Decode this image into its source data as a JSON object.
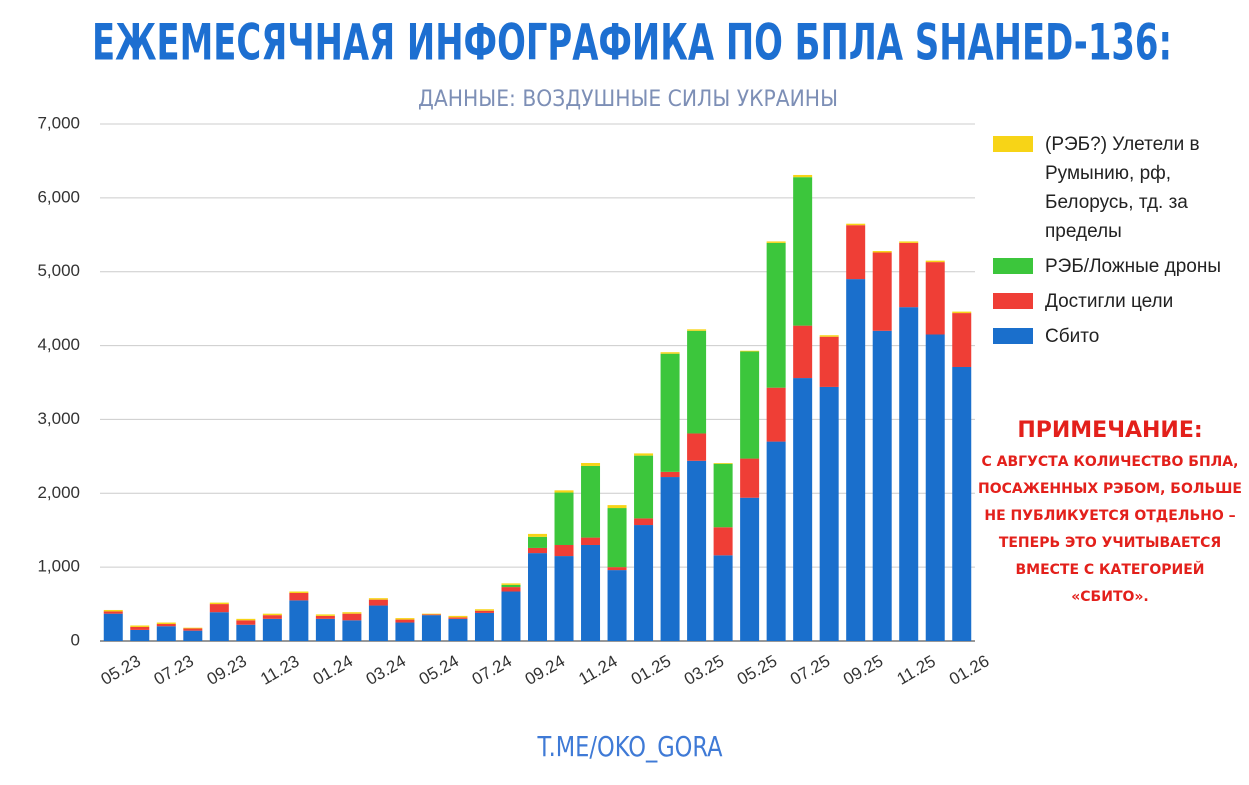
{
  "chart_data": {
    "type": "bar",
    "stacked": true,
    "title": "ЕЖЕМЕСЯЧНАЯ ИНФОГРАФИКА ПО БПЛА SHAHED-136:",
    "subtitle": "ДАННЫЕ: ВОЗДУШНЫЕ СИЛЫ УКРАИНЫ",
    "footer": "T.ME/OKO_GORA",
    "note": {
      "title": "ПРИМЕЧАНИЕ:",
      "text": "С АВГУСТА КОЛИЧЕСТВО БПЛА, ПОСАЖЕННЫХ РЭБОМ, БОЛЬШЕ НЕ ПУБЛИКУЕТСЯ ОТДЕЛЬНО – ТЕПЕРЬ ЭТО УЧИТЫВАЕТСЯ ВМЕСТЕ С КАТЕГОРИЕЙ «СБИТО»."
    },
    "categories": [
      "05.23",
      null,
      "07.23",
      null,
      "09.23",
      null,
      "11.23",
      null,
      "01.24",
      null,
      "03.24",
      null,
      "05.24",
      null,
      "07.24",
      null,
      "09.24",
      null,
      "11.24",
      null,
      "01.25",
      null,
      "03.25",
      null,
      "05.25",
      null,
      "07.25",
      null,
      "09.25",
      null,
      "11.25",
      null,
      "01.26"
    ],
    "series": [
      {
        "name": "Сбито",
        "color": "#1a6fcc",
        "values": [
          370,
          150,
          200,
          140,
          390,
          220,
          300,
          550,
          300,
          280,
          480,
          250,
          350,
          300,
          380,
          670,
          1190,
          1150,
          1300,
          960,
          1570,
          2220,
          2440,
          1160,
          1940,
          2700,
          3560,
          3440,
          4900,
          4200,
          4520,
          4150,
          3710
        ]
      },
      {
        "name": "Достигли цели",
        "color": "#ef3e36",
        "values": [
          30,
          40,
          30,
          30,
          110,
          60,
          50,
          100,
          40,
          90,
          80,
          40,
          10,
          20,
          30,
          60,
          70,
          150,
          100,
          40,
          90,
          70,
          370,
          380,
          530,
          730,
          710,
          680,
          730,
          1060,
          870,
          980,
          730
        ]
      },
      {
        "name": "РЭБ/Ложные дроны",
        "color": "#3cc63c",
        "values": [
          0,
          0,
          0,
          0,
          0,
          0,
          0,
          0,
          0,
          0,
          0,
          0,
          0,
          0,
          0,
          30,
          150,
          710,
          970,
          800,
          850,
          1600,
          1390,
          860,
          1450,
          1960,
          2010,
          0,
          0,
          0,
          0,
          0,
          0
        ]
      },
      {
        "name": "(РЭБ?) Улетели в Румынию, рф, Белорусь, тд. за пределы",
        "color": "#f7d417",
        "values": [
          20,
          20,
          20,
          10,
          20,
          20,
          20,
          20,
          20,
          20,
          20,
          20,
          10,
          20,
          20,
          20,
          40,
          30,
          40,
          40,
          30,
          20,
          20,
          10,
          10,
          20,
          30,
          20,
          20,
          20,
          20,
          20,
          20
        ]
      }
    ],
    "ylim": [
      0,
      7000
    ],
    "yticks": [
      0,
      {
        "value": 1000,
        "label": "1,000"
      },
      {
        "value": 2000,
        "label": "2,000"
      },
      {
        "value": 3000,
        "label": "3,000"
      },
      {
        "value": 4000,
        "label": "4,000"
      },
      {
        "value": 5000,
        "label": "5,000"
      },
      {
        "value": 6000,
        "label": "6,000"
      },
      {
        "value": 7000,
        "label": "7,000"
      }
    ],
    "grid": true,
    "legend": "right"
  }
}
